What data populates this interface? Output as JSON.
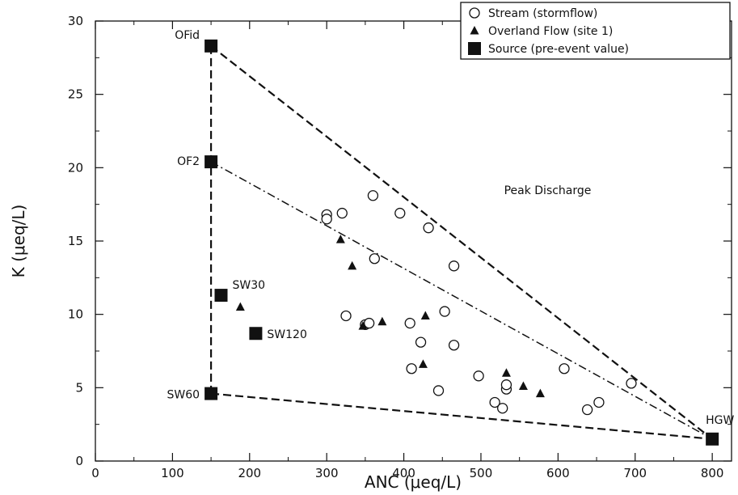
{
  "chart_data": {
    "type": "scatter",
    "xlabel": "ANC (μeq/L)",
    "ylabel": "K (μeq/L)",
    "xlim": [
      0,
      825
    ],
    "ylim": [
      0,
      30
    ],
    "xticks": [
      0,
      100,
      200,
      300,
      400,
      500,
      600,
      700,
      800
    ],
    "yticks": [
      0,
      5,
      10,
      15,
      20,
      25,
      30
    ],
    "x_minor_step": 50,
    "y_minor_step": 2.5,
    "grid": false,
    "legend_position": "top-right",
    "series": [
      {
        "name": "Stream (stormflow)",
        "marker": "open-circle",
        "points": [
          [
            300,
            16.8
          ],
          [
            300,
            16.5
          ],
          [
            320,
            16.9
          ],
          [
            360,
            18.1
          ],
          [
            395,
            16.9
          ],
          [
            432,
            15.9
          ],
          [
            362,
            13.8
          ],
          [
            465,
            13.3
          ],
          [
            325,
            9.9
          ],
          [
            350,
            9.3
          ],
          [
            355,
            9.4
          ],
          [
            408,
            9.4
          ],
          [
            453,
            10.2
          ],
          [
            422,
            8.1
          ],
          [
            465,
            7.9
          ],
          [
            410,
            6.3
          ],
          [
            445,
            4.8
          ],
          [
            497,
            5.8
          ],
          [
            518,
            4.0
          ],
          [
            528,
            3.6
          ],
          [
            533,
            4.9
          ],
          [
            533,
            5.2
          ],
          [
            608,
            6.3
          ],
          [
            638,
            3.5
          ],
          [
            653,
            4.0
          ],
          [
            695,
            5.3
          ]
        ]
      },
      {
        "name": "Overland Flow (site 1)",
        "marker": "filled-triangle",
        "points": [
          [
            318,
            15.1
          ],
          [
            333,
            13.3
          ],
          [
            188,
            10.5
          ],
          [
            347,
            9.2
          ],
          [
            372,
            9.5
          ],
          [
            428,
            9.9
          ],
          [
            425,
            6.6
          ],
          [
            533,
            6.0
          ],
          [
            555,
            5.1
          ],
          [
            577,
            4.6
          ]
        ]
      },
      {
        "name": "Source (pre-event value)",
        "marker": "filled-square",
        "points": [
          {
            "label": "OFid",
            "x": 150,
            "y": 28.3
          },
          {
            "label": "OF2",
            "x": 150,
            "y": 20.4
          },
          {
            "label": "SW30",
            "x": 163,
            "y": 11.3
          },
          {
            "label": "SW120",
            "x": 208,
            "y": 8.7
          },
          {
            "label": "SW60",
            "x": 150,
            "y": 4.6
          },
          {
            "label": "HGW",
            "x": 800,
            "y": 1.5
          }
        ]
      }
    ],
    "mixing_lines": [
      {
        "style": "dashed",
        "from": "OFid",
        "to": "HGW"
      },
      {
        "style": "dashed",
        "from": "OFid",
        "to": "SW60"
      },
      {
        "style": "dashed",
        "from": "SW60",
        "to": "HGW"
      },
      {
        "style": "dash-dot",
        "from": "OF2",
        "to": "HGW"
      }
    ],
    "annotations": [
      {
        "text": "Peak Discharge",
        "x": 530,
        "y": 18.2
      }
    ]
  }
}
